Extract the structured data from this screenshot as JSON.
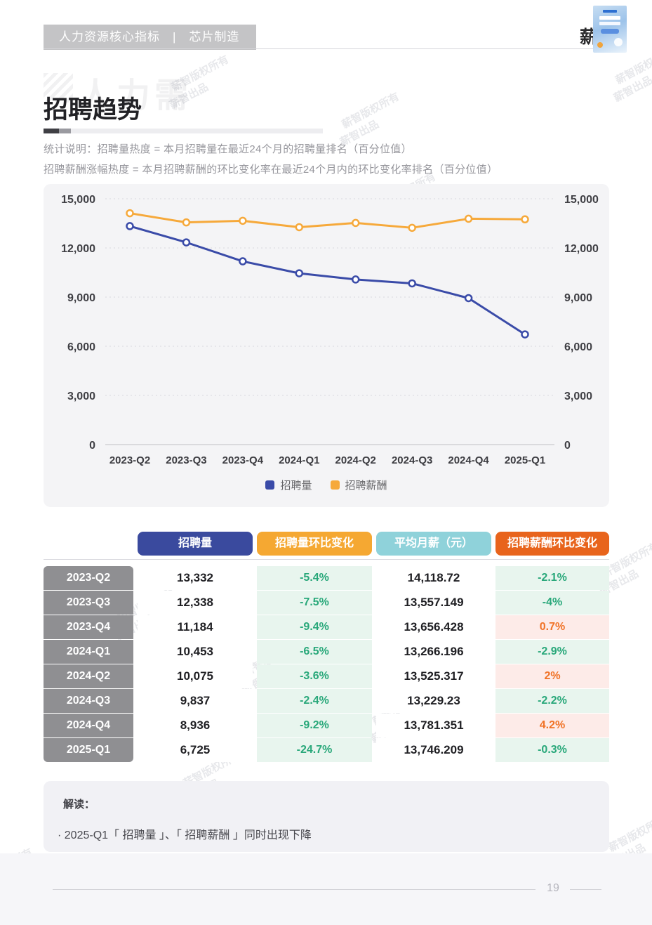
{
  "header": {
    "breadcrumb": "人力资源核心指标　|　芯片制造",
    "logo_char": "薪"
  },
  "title_section": {
    "watermark_title": "人力需",
    "title": "招聘趋势",
    "note_line1": "统计说明：招聘量热度 = 本月招聘量在最近24个月的招聘量排名（百分位值）",
    "note_line2": "招聘薪酬涨幅热度 = 本月招聘薪酬的环比变化率在最近24个月内的环比变化率排名（百分位值）"
  },
  "chart_data": {
    "type": "line",
    "title": "",
    "categories": [
      "2023-Q2",
      "2023-Q3",
      "2023-Q4",
      "2024-Q1",
      "2024-Q2",
      "2024-Q3",
      "2024-Q4",
      "2025-Q1"
    ],
    "series": [
      {
        "name": "招聘量",
        "color": "#3a4ba8",
        "values": [
          13332,
          12338,
          11184,
          10453,
          10075,
          9837,
          8936,
          6725
        ]
      },
      {
        "name": "招聘薪酬",
        "color": "#f6a93b",
        "values": [
          14118.72,
          13557.149,
          13656.428,
          13266.196,
          13525.317,
          13229.23,
          13781.351,
          13746.209
        ]
      }
    ],
    "ylim": [
      0,
      15000
    ],
    "yticks": [
      0,
      3000,
      6000,
      9000,
      12000,
      15000
    ],
    "grid": true,
    "dual_axis": true,
    "legend_position": "bottom"
  },
  "table": {
    "columns": [
      "招聘量",
      "招聘量环比变化",
      "平均月薪（元）",
      "招聘薪酬环比变化"
    ],
    "rows": [
      {
        "period": "2023-Q2",
        "volume": "13,332",
        "volume_change": "-5.4%",
        "avg_salary": "14,118.72",
        "salary_change": "-2.1%"
      },
      {
        "period": "2023-Q3",
        "volume": "12,338",
        "volume_change": "-7.5%",
        "avg_salary": "13,557.149",
        "salary_change": "-4%"
      },
      {
        "period": "2023-Q4",
        "volume": "11,184",
        "volume_change": "-9.4%",
        "avg_salary": "13,656.428",
        "salary_change": "0.7%"
      },
      {
        "period": "2024-Q1",
        "volume": "10,453",
        "volume_change": "-6.5%",
        "avg_salary": "13,266.196",
        "salary_change": "-2.9%"
      },
      {
        "period": "2024-Q2",
        "volume": "10,075",
        "volume_change": "-3.6%",
        "avg_salary": "13,525.317",
        "salary_change": "2%"
      },
      {
        "period": "2024-Q3",
        "volume": "9,837",
        "volume_change": "-2.4%",
        "avg_salary": "13,229.23",
        "salary_change": "-2.2%"
      },
      {
        "period": "2024-Q4",
        "volume": "8,936",
        "volume_change": "-9.2%",
        "avg_salary": "13,781.351",
        "salary_change": "4.2%"
      },
      {
        "period": "2025-Q1",
        "volume": "6,725",
        "volume_change": "-24.7%",
        "avg_salary": "13,746.209",
        "salary_change": "-0.3%"
      }
    ]
  },
  "insight": {
    "label": "解读：",
    "bullet": "· 2025-Q1「 招聘量 」、「 招聘薪酬 」同时出现下降"
  },
  "footer": {
    "page_number": "19"
  },
  "watermark": {
    "line1": "薪智版权所有",
    "line2": "薪智出品"
  },
  "colors": {
    "header_colors": [
      "#3a4a9e",
      "#f5a832",
      "#8fd2da",
      "#e8641c"
    ],
    "line_blue": "#3a4ba8",
    "line_orange": "#f6a93b",
    "negative_text": "#29a87a",
    "positive_text": "#f07327",
    "negative_bg": "#e8f5ee",
    "positive_bg": "#fdebe8",
    "row_label_bg": "#8f8f92"
  }
}
